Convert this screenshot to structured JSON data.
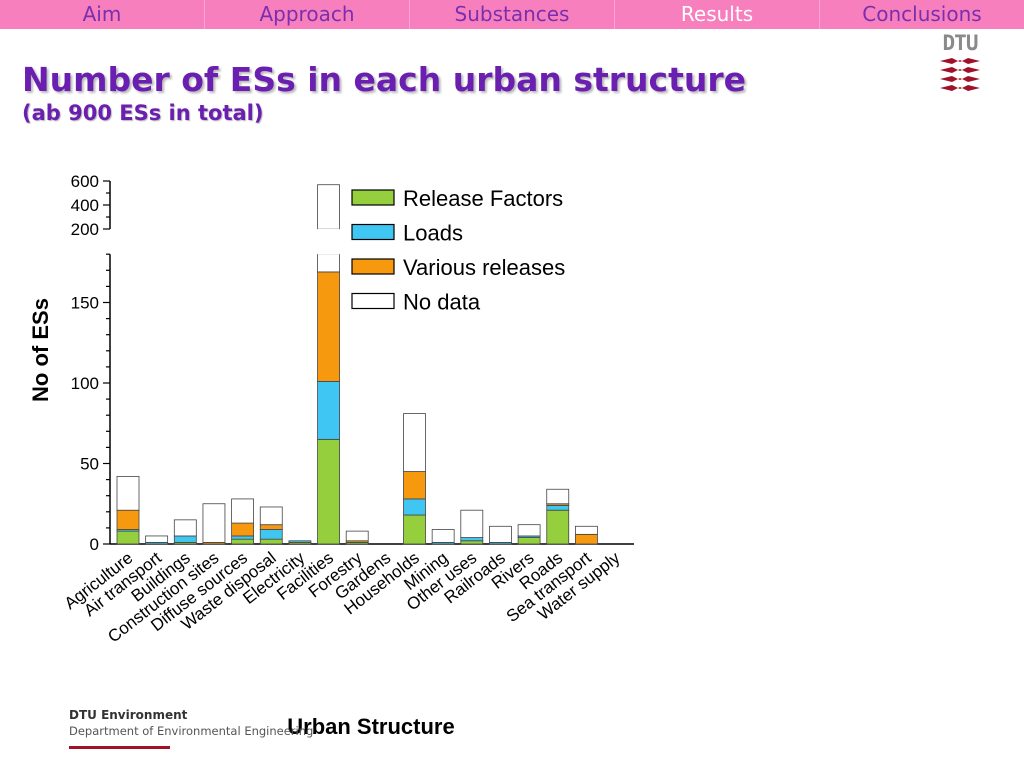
{
  "nav": {
    "items": [
      "Aim",
      "Approach",
      "Substances",
      "Results",
      "Conclusions"
    ],
    "active": "Results"
  },
  "logo": {
    "text": "DTU",
    "color": "#a0112a"
  },
  "header": {
    "title": "Number of ESs in each urban structure",
    "subtitle": "(ab 900 ESs in total)"
  },
  "footer": {
    "org": "DTU Environment",
    "dept": "Department of Environmental Engineering"
  },
  "colors": {
    "nav_bg": "#f77fbe",
    "nav_text": "#7a2fae",
    "title": "#6a1fb0",
    "release_factors": "#95cf3d",
    "loads": "#3fc6f2",
    "various_releases": "#f7990f",
    "no_data": "#ffffff"
  },
  "chart_data": {
    "type": "bar",
    "stacked": true,
    "broken_y_axis": true,
    "xlabel": "Urban Structure",
    "ylabel": "No of ESs",
    "y_lower_ticks": [
      0,
      50,
      100,
      150
    ],
    "y_upper_ticks": [
      200,
      400,
      600
    ],
    "categories": [
      "Agriculture",
      "Air transport",
      "Buildings",
      "Construction sites",
      "Diffuse sources",
      "Waste disposal",
      "Electricity",
      "Facilities",
      "Forestry",
      "Gardens",
      "Households",
      "Mining",
      "Other uses",
      "Railroads",
      "Rivers",
      "Roads",
      "Sea transport",
      "Water supply"
    ],
    "series": [
      {
        "name": "Release Factors",
        "values": [
          8,
          0,
          1,
          0,
          3,
          3,
          1,
          65,
          1,
          0,
          18,
          0,
          2,
          0,
          4,
          21,
          0,
          0
        ]
      },
      {
        "name": "Loads",
        "values": [
          1,
          1,
          4,
          0,
          2,
          6,
          1,
          36,
          0,
          0,
          10,
          1,
          2,
          1,
          1,
          3,
          0,
          0
        ]
      },
      {
        "name": "Various releases",
        "values": [
          12,
          0,
          0,
          1,
          8,
          3,
          0,
          68,
          1,
          0,
          17,
          0,
          0,
          0,
          0,
          1,
          6,
          0
        ]
      },
      {
        "name": "No data",
        "values": [
          21,
          4,
          10,
          24,
          15,
          11,
          0,
          400,
          6,
          0,
          36,
          8,
          17,
          10,
          7,
          9,
          5,
          0
        ]
      }
    ],
    "legend_position": "top-right"
  }
}
